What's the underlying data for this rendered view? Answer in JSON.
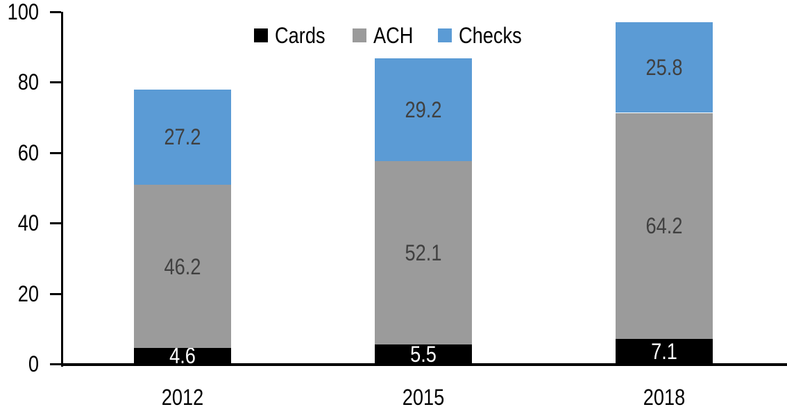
{
  "chart_data": {
    "type": "bar",
    "stacked": true,
    "title": "",
    "xlabel": "",
    "ylabel": "",
    "categories": [
      "2012",
      "2015",
      "2018"
    ],
    "series": [
      {
        "name": "Cards",
        "color": "#000000",
        "label_color": "#FFFFFF",
        "values": [
          4.6,
          5.5,
          7.1
        ]
      },
      {
        "name": "ACH",
        "color": "#9B9B9B",
        "label_color": "#404040",
        "values": [
          46.2,
          52.1,
          64.2
        ]
      },
      {
        "name": "Checks",
        "color": "#5B9BD5",
        "label_color": "#404040",
        "values": [
          27.2,
          29.2,
          25.8
        ]
      }
    ],
    "ylim": [
      0,
      100
    ],
    "yticks": [
      0,
      20,
      40,
      60,
      80,
      100
    ],
    "grid": false,
    "legend_position": "top",
    "axis_color": "#000000",
    "background_color": "#FFFFFF"
  }
}
